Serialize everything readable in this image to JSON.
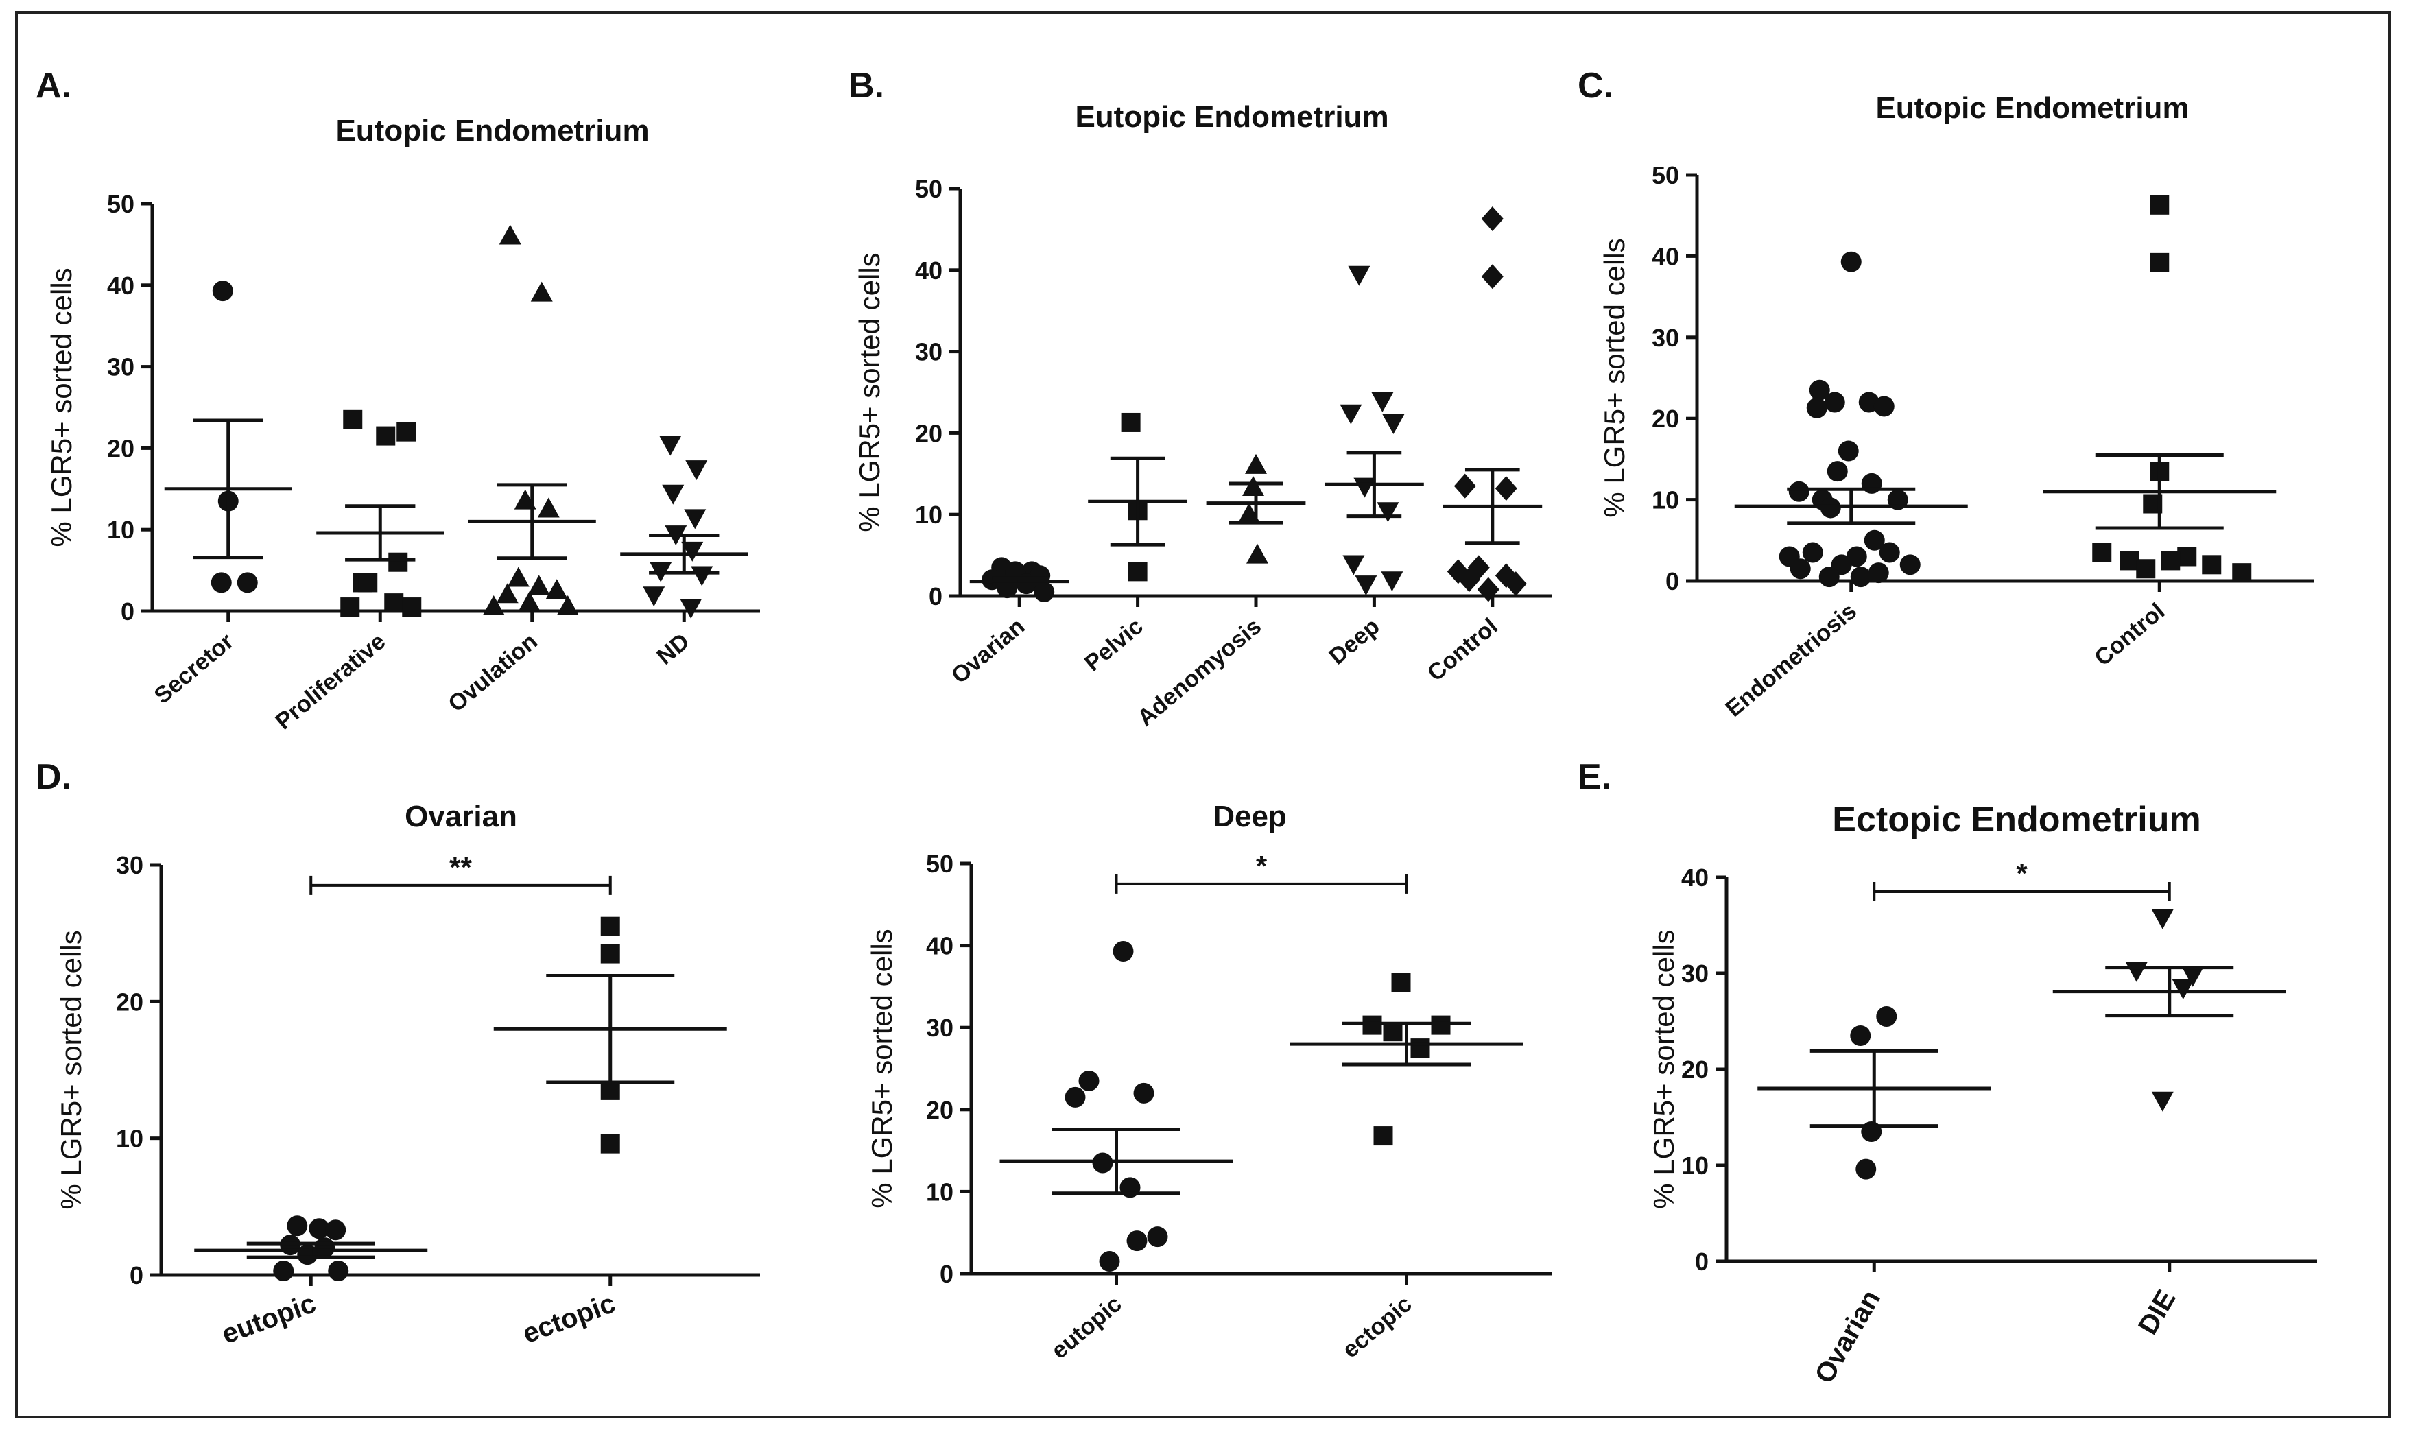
{
  "figure": {
    "background": "#ffffff",
    "ink": "#111111"
  },
  "chart_data": [
    {
      "id": "A",
      "panel_label": "A.",
      "type": "scatter",
      "title": "Eutopic Endometrium",
      "ylabel": "% LGR5+ sorted cells",
      "ylim": [
        0,
        50
      ],
      "yticks": [
        0,
        10,
        20,
        30,
        40,
        50
      ],
      "categories": [
        "Secretor",
        "Proliferative",
        "Ovulation",
        "ND"
      ],
      "markers": [
        "circle",
        "square",
        "triangle",
        "triangle-down"
      ],
      "values": [
        [
          39.3,
          13.5,
          3.5,
          3.5
        ],
        [
          23.5,
          21.5,
          22,
          6,
          3.5,
          3.5,
          1,
          0.5,
          0.5
        ],
        [
          46,
          39,
          13.5,
          12.5,
          4,
          3,
          2.5,
          2,
          1,
          0.5,
          0.5
        ],
        [
          20.5,
          17.5,
          14.5,
          11.5,
          9.5,
          7.5,
          5,
          4.5,
          2,
          0.5
        ]
      ],
      "mean": [
        15,
        9.6,
        11,
        7
      ],
      "sem": [
        8.4,
        3.3,
        4.5,
        2.3
      ],
      "label_rotate": -40,
      "significance": []
    },
    {
      "id": "B",
      "panel_label": "B.",
      "type": "scatter",
      "title": "Eutopic Endometrium",
      "ylabel": "% LGR5+ sorted cells",
      "ylim": [
        0,
        50
      ],
      "yticks": [
        0,
        10,
        20,
        30,
        40,
        50
      ],
      "categories": [
        "Ovarian",
        "Pelvic",
        "Adenomyosis",
        "Deep",
        "Control"
      ],
      "markers": [
        "circle",
        "square",
        "triangle",
        "triangle-down",
        "diamond"
      ],
      "values": [
        [
          3.5,
          3,
          3,
          2.5,
          2,
          1.5,
          1,
          0.5
        ],
        [
          21.3,
          10.5,
          3
        ],
        [
          16,
          13.3,
          10,
          5
        ],
        [
          39.5,
          24,
          22.5,
          21.3,
          13.5,
          10.5,
          4,
          2,
          1.5
        ],
        [
          46.3,
          39.2,
          13.5,
          13.2,
          3.5,
          3,
          2.5,
          2,
          1.5,
          0.8
        ]
      ],
      "mean": [
        1.8,
        11.6,
        11.4,
        13.7,
        11
      ],
      "sem": [
        0.4,
        5.3,
        2.4,
        3.9,
        4.5
      ],
      "label_rotate": -40,
      "significance": []
    },
    {
      "id": "C",
      "panel_label": "C.",
      "type": "scatter",
      "title": "Eutopic Endometrium",
      "ylabel": "% LGR5+ sorted cells",
      "ylim": [
        0,
        50
      ],
      "yticks": [
        0,
        10,
        20,
        30,
        40,
        50
      ],
      "categories": [
        "Endometriosis",
        "Control"
      ],
      "markers": [
        "circle",
        "square"
      ],
      "values": [
        [
          39.3,
          23.5,
          22,
          22,
          21.5,
          21.3,
          16,
          13.5,
          12,
          11,
          10,
          10,
          9,
          5,
          3.5,
          3.5,
          3,
          3,
          2,
          2,
          1.5,
          1,
          0.5,
          0.5
        ],
        [
          46.3,
          39.2,
          13.5,
          9.5,
          3.5,
          3,
          2.5,
          2.5,
          2,
          1.5,
          1
        ]
      ],
      "mean": [
        9.2,
        11
      ],
      "sem": [
        2.1,
        4.5
      ],
      "label_rotate": -40,
      "significance": []
    },
    {
      "id": "D1",
      "panel_label": "D.",
      "type": "scatter",
      "title": "Ovarian",
      "ylabel": "% LGR5+ sorted cells",
      "ylim": [
        0,
        30
      ],
      "yticks": [
        0,
        10,
        20,
        30
      ],
      "categories": [
        "eutopic",
        "ectopic"
      ],
      "markers": [
        "circle",
        "square"
      ],
      "values": [
        [
          3.6,
          3.4,
          3.3,
          2.2,
          2,
          1.5,
          0.3,
          0.3
        ],
        [
          25.5,
          23.5,
          13.5,
          9.6
        ]
      ],
      "mean": [
        1.8,
        18
      ],
      "sem": [
        0.5,
        3.9
      ],
      "label_rotate": -20,
      "significance": [
        {
          "from": 0,
          "to": 1,
          "y": 28.5,
          "label": "**"
        }
      ]
    },
    {
      "id": "D2",
      "panel_label": "",
      "type": "scatter",
      "title": "Deep",
      "ylabel": "% LGR5+ sorted cells",
      "ylim": [
        0,
        50
      ],
      "yticks": [
        0,
        10,
        20,
        30,
        40,
        50
      ],
      "categories": [
        "eutopic",
        "ectopic"
      ],
      "markers": [
        "circle",
        "square"
      ],
      "values": [
        [
          39.3,
          23.5,
          22,
          21.5,
          13.5,
          10.5,
          4.5,
          4,
          1.5
        ],
        [
          35.5,
          30.3,
          30.3,
          29.5,
          27.5,
          16.8
        ]
      ],
      "mean": [
        13.7,
        28
      ],
      "sem": [
        3.9,
        2.5
      ],
      "label_rotate": -40,
      "significance": [
        {
          "from": 0,
          "to": 1,
          "y": 47.5,
          "label": "*"
        }
      ]
    },
    {
      "id": "E",
      "panel_label": "E.",
      "type": "scatter",
      "title": "Ectopic Endometrium",
      "ylabel": "% LGR5+ sorted cells",
      "ylim": [
        0,
        40
      ],
      "yticks": [
        0,
        10,
        20,
        30,
        40
      ],
      "categories": [
        "Ovarian",
        "DIE"
      ],
      "markers": [
        "circle",
        "triangle-down"
      ],
      "values": [
        [
          25.5,
          23.5,
          13.5,
          9.6
        ],
        [
          35.8,
          30.3,
          29.8,
          28.5,
          16.8
        ]
      ],
      "mean": [
        18,
        28.1
      ],
      "sem": [
        3.9,
        2.5
      ],
      "label_rotate": -60,
      "significance": [
        {
          "from": 0,
          "to": 1,
          "y": 38.5,
          "label": "*"
        }
      ]
    }
  ]
}
